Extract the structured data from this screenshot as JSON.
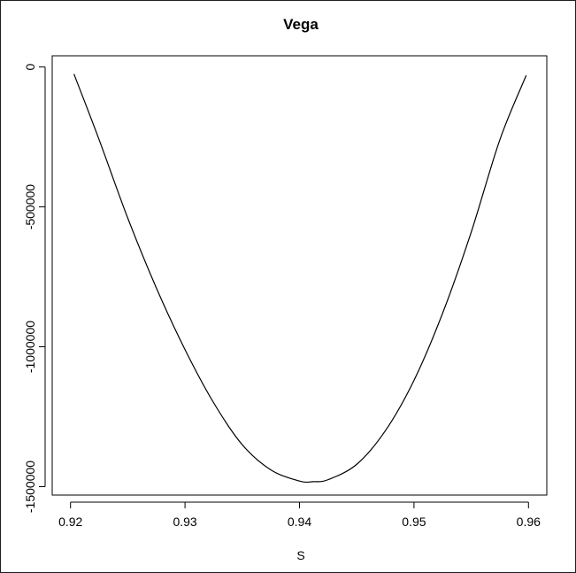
{
  "chart_data": {
    "type": "line",
    "title": "Vega",
    "xlabel": "S",
    "ylabel": "",
    "xlim": [
      0.9184,
      0.9616
    ],
    "ylim": [
      -1530000,
      40000
    ],
    "xticks": [
      0.92,
      0.93,
      0.94,
      0.95,
      0.96
    ],
    "xtick_labels": [
      "0.92",
      "0.93",
      "0.94",
      "0.95",
      "0.96"
    ],
    "yticks": [
      0,
      -500000,
      -1000000,
      -1500000
    ],
    "ytick_labels": [
      "0",
      "-500000",
      "-1000000",
      "-1500000"
    ],
    "grid": false,
    "legend": "none",
    "line_color": "#000000",
    "series": [
      {
        "x": [
          0.9203,
          0.9225,
          0.925,
          0.9275,
          0.93,
          0.9325,
          0.935,
          0.9375,
          0.94,
          0.9412,
          0.9425,
          0.945,
          0.9475,
          0.95,
          0.9525,
          0.955,
          0.9575,
          0.9598
        ],
        "y": [
          -25000,
          -260000,
          -540000,
          -790000,
          -1010000,
          -1200000,
          -1350000,
          -1440000,
          -1480000,
          -1482000,
          -1475000,
          -1420000,
          -1300000,
          -1120000,
          -880000,
          -590000,
          -260000,
          -30000
        ]
      }
    ]
  }
}
